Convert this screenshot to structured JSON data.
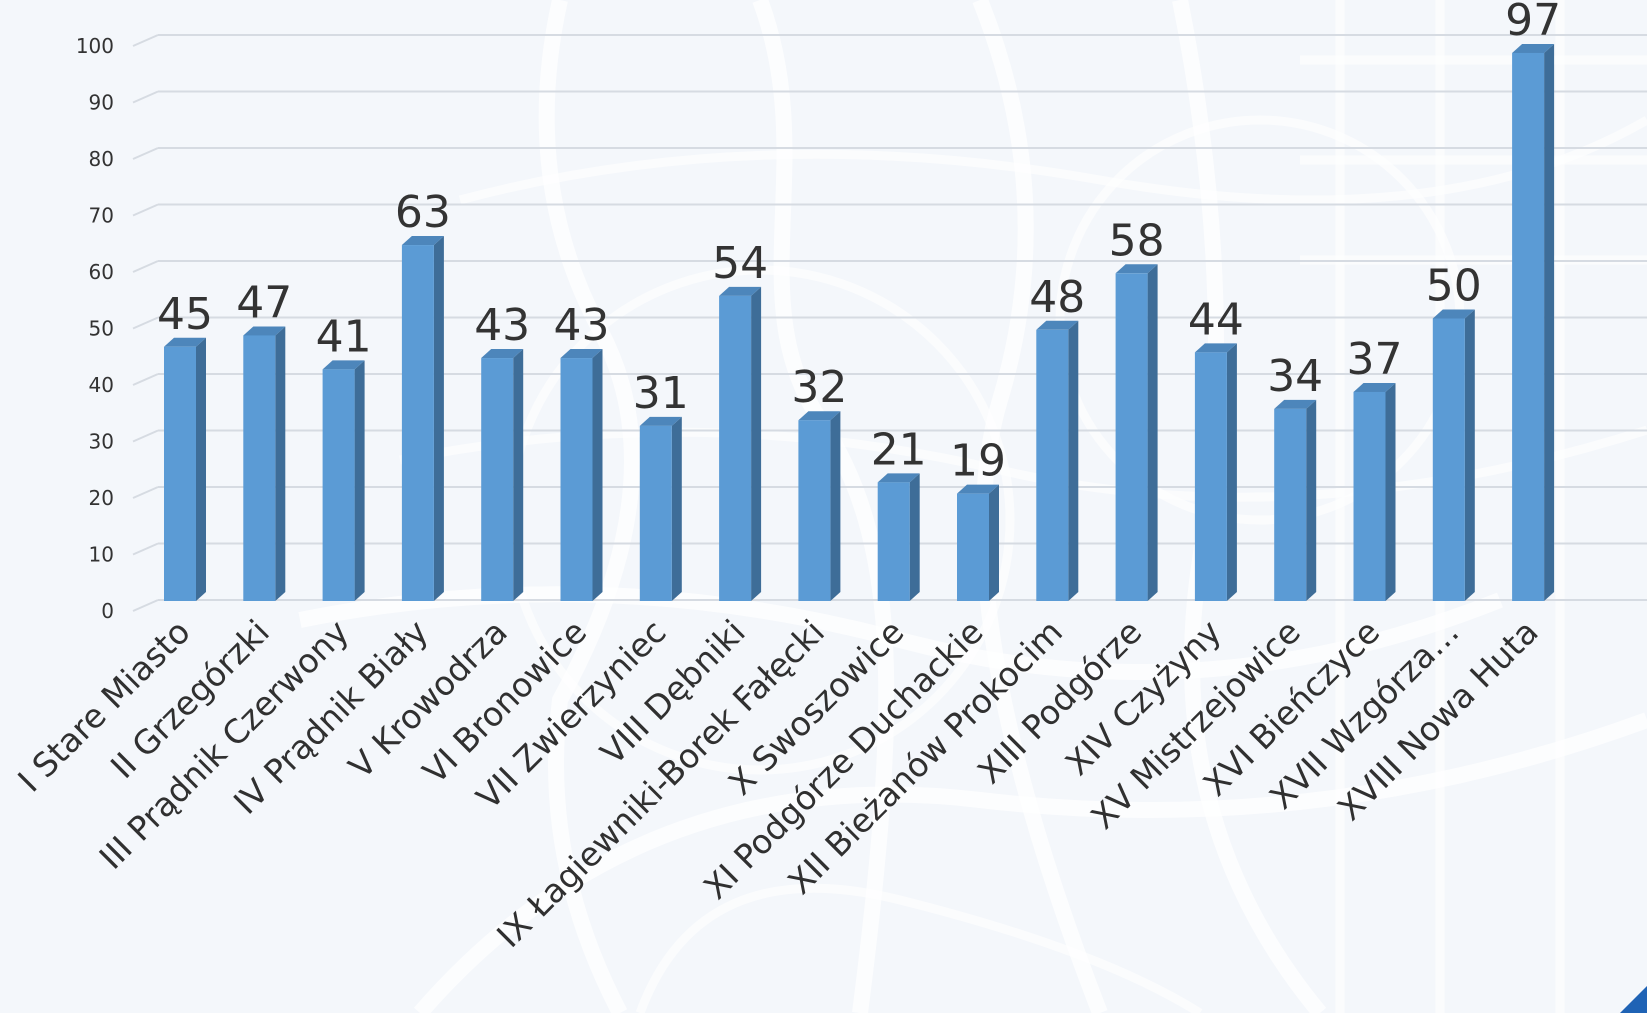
{
  "chart_data": {
    "type": "bar",
    "style": "3d-column",
    "title": "",
    "xlabel": "",
    "ylabel": "",
    "ylim": [
      0,
      100
    ],
    "yticks": [
      0,
      10,
      20,
      30,
      40,
      50,
      60,
      70,
      80,
      90,
      100
    ],
    "grid": true,
    "legend": "none",
    "data_labels": true,
    "categories": [
      "I Stare Miasto",
      "II Grzegórzki",
      "III Prądnik Czerwony",
      "IV Prądnik Biały",
      "V Krowodrza",
      "VI Bronowice",
      "VII Zwierzyniec",
      "VIII Dębniki",
      "IX Łagiewniki-Borek Fałęcki",
      "X Swoszowice",
      "XI Podgórze Duchackie",
      "XII Bieżanów Prokocim",
      "XIII Podgórze",
      "XIV Czyżyny",
      "XV Mistrzejowice",
      "XVI Bieńczyce",
      "XVII Wzgórza…",
      "XVIII Nowa Huta"
    ],
    "values": [
      45,
      47,
      41,
      63,
      43,
      43,
      31,
      54,
      32,
      21,
      19,
      48,
      58,
      44,
      34,
      37,
      50,
      97
    ],
    "colors": {
      "bar_front": "#5b9bd5",
      "bar_side": "#3e6d98",
      "bar_top": "#4d86bb"
    }
  }
}
